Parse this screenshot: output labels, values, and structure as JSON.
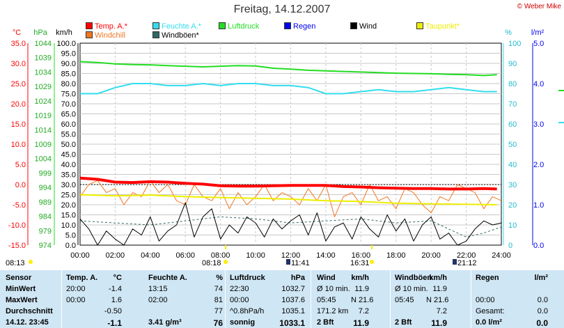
{
  "page": {
    "title": "Freitag, 14.12.2007",
    "copyright": "© Weber Mike"
  },
  "legend": [
    {
      "label": "Temp. A.*",
      "color": "#ff0000"
    },
    {
      "label": "Feuchte A.*",
      "color": "#33ddee"
    },
    {
      "label": "Luftdruck",
      "color": "#22dd22"
    },
    {
      "label": "Regen",
      "color": "#0000ee"
    },
    {
      "label": "Wind",
      "color": "#000000"
    },
    {
      "label": "Taupunkt*",
      "color": "#eeee00"
    },
    {
      "label": "Windchill",
      "color": "#ee7722"
    },
    {
      "label": "Windböen*",
      "color": "#336666"
    }
  ],
  "axes": {
    "temp_unit": "°C",
    "temp_ticks": [
      "35.0",
      "30.0",
      "25.0",
      "20.0",
      "15.0",
      "10.0",
      "5.0",
      "0.0",
      "-5.0",
      "-10.0",
      "-15.0"
    ],
    "hpa_unit": "hPa",
    "hpa_ticks": [
      "1044",
      "1039",
      "1034",
      "1029",
      "1024",
      "1019",
      "1014",
      "1009",
      "1004",
      "999",
      "994",
      "989",
      "984",
      "979",
      "974"
    ],
    "kmh_unit": "km/h",
    "kmh_ticks": [
      "100.0",
      "95.0",
      "90.0",
      "85.0",
      "80.0",
      "75.0",
      "70.0",
      "65.0",
      "60.0",
      "55.0",
      "50.0",
      "45.0",
      "40.0",
      "35.0",
      "30.0",
      "25.0",
      "20.0",
      "15.0",
      "10.0",
      "5.0",
      "0.0"
    ],
    "pct_unit": "%",
    "pct_ticks": [
      "100",
      "90",
      "80",
      "70",
      "60",
      "50",
      "40",
      "30",
      "20",
      "10",
      "0"
    ],
    "rain_unit": "l/m²",
    "rain_ticks": [
      "5.0",
      "4.0",
      "3.0",
      "2.0",
      "1.0",
      "0.0"
    ],
    "x_ticks": [
      "00:00",
      "02:00",
      "04:00",
      "06:00",
      "08:00",
      "10:00",
      "12:00",
      "14:00",
      "16:00",
      "18:00",
      "20:00",
      "22:00",
      "24:00"
    ]
  },
  "sun_times": [
    "08:13",
    "08:18",
    "11:41",
    "16:31",
    "21:12"
  ],
  "chart_data": {
    "type": "line",
    "x_unit": "hours",
    "x_range": [
      0,
      24
    ],
    "x_ticks": [
      "00:00",
      "02:00",
      "04:00",
      "06:00",
      "08:00",
      "10:00",
      "12:00",
      "14:00",
      "16:00",
      "18:00",
      "20:00",
      "22:00",
      "24:00"
    ],
    "ylim_kmh": [
      0,
      100
    ],
    "ylim_temp": [
      -15,
      35
    ],
    "ylim_hpa": [
      974,
      1044
    ],
    "ylim_pct": [
      0,
      100
    ],
    "ylim_rain": [
      0,
      5
    ],
    "grid": true,
    "series": [
      {
        "name": "Temp. A.*",
        "axis": "temp",
        "color": "#ff0000",
        "x": [
          0,
          1,
          2,
          3,
          4,
          5,
          6,
          7,
          8,
          9,
          10,
          11,
          12,
          13,
          14,
          15,
          16,
          17,
          18,
          19,
          20,
          21,
          22,
          23,
          23.75
        ],
        "values": [
          1.6,
          1.3,
          0.6,
          0.5,
          0.7,
          0.6,
          0.3,
          0.1,
          -0.3,
          -0.4,
          -0.4,
          -0.3,
          -0.2,
          -0.2,
          -0.2,
          -0.5,
          -0.6,
          -0.8,
          -0.9,
          -1.0,
          -1.0,
          -1.1,
          -1.1,
          -1.0,
          -1.1
        ]
      },
      {
        "name": "Feuchte A.*",
        "axis": "pct",
        "color": "#33ddee",
        "x": [
          0,
          1,
          2,
          3,
          4,
          5,
          6,
          7,
          8,
          9,
          10,
          11,
          12,
          13,
          14,
          15,
          16,
          17,
          18,
          19,
          20,
          21,
          22,
          23,
          23.75
        ],
        "values": [
          75,
          75,
          78,
          80,
          80,
          79,
          79,
          80,
          79,
          80,
          80,
          79,
          79,
          78,
          75,
          75,
          76,
          77,
          76,
          76,
          77,
          78,
          77,
          76,
          76
        ]
      },
      {
        "name": "Luftdruck",
        "axis": "hpa",
        "color": "#22dd22",
        "x": [
          0,
          1,
          2,
          3,
          4,
          5,
          6,
          7,
          8,
          9,
          10,
          11,
          12,
          13,
          14,
          15,
          16,
          17,
          18,
          19,
          20,
          21,
          22,
          23,
          23.75
        ],
        "values": [
          1037.6,
          1037.3,
          1036.8,
          1036.6,
          1036.5,
          1036.2,
          1036.0,
          1035.8,
          1036.0,
          1036.2,
          1036.1,
          1035.3,
          1035.0,
          1034.6,
          1034.4,
          1034.2,
          1034.0,
          1033.8,
          1033.6,
          1033.5,
          1033.4,
          1033.2,
          1033.1,
          1032.8,
          1033.1
        ]
      },
      {
        "name": "Wind",
        "axis": "kmh",
        "color": "#000000",
        "x": [
          0,
          0.5,
          1,
          1.5,
          2,
          2.5,
          3,
          3.5,
          4,
          4.5,
          5,
          5.5,
          6,
          6.5,
          7,
          7.5,
          8,
          8.5,
          9,
          9.5,
          10,
          10.5,
          11,
          11.5,
          12,
          12.5,
          13,
          13.5,
          14,
          14.5,
          15,
          15.5,
          16,
          16.5,
          17,
          17.5,
          18,
          18.5,
          19,
          19.5,
          20,
          20.5,
          21,
          21.5,
          22,
          22.5,
          23,
          23.5,
          24
        ],
        "values": [
          13,
          8,
          0,
          7,
          3,
          0,
          8,
          5,
          14,
          2,
          7,
          10,
          21,
          4,
          14,
          18,
          3,
          10,
          6,
          14,
          11,
          4,
          13,
          8,
          12,
          15,
          5,
          16,
          2,
          9,
          11,
          3,
          14,
          8,
          4,
          15,
          7,
          13,
          2,
          10,
          14,
          3,
          6,
          0,
          2,
          8,
          12,
          10,
          11
        ]
      },
      {
        "name": "Taupunkt*",
        "axis": "temp",
        "color": "#eeee00",
        "x": [
          0,
          2,
          4,
          6,
          8,
          10,
          12,
          14,
          16,
          18,
          20,
          22,
          23.75
        ],
        "values": [
          -2.5,
          -2.8,
          -2.6,
          -3.0,
          -3.2,
          -3.4,
          -3.6,
          -4.0,
          -4.2,
          -4.6,
          -4.8,
          -4.9,
          -5.0
        ]
      },
      {
        "name": "Windchill",
        "axis": "temp",
        "color": "#ee7722",
        "x": [
          0,
          0.5,
          1,
          1.5,
          2,
          2.5,
          3,
          3.5,
          4,
          4.5,
          5,
          5.5,
          6,
          6.5,
          7,
          7.5,
          8,
          8.5,
          9,
          9.5,
          10,
          10.5,
          11,
          11.5,
          12,
          12.5,
          13,
          13.5,
          14,
          14.5,
          15,
          15.5,
          16,
          16.5,
          17,
          17.5,
          18,
          18.5,
          19,
          19.5,
          20,
          20.5,
          21,
          21.5,
          22,
          22.5,
          23,
          23.5,
          24
        ],
        "values": [
          -3,
          0,
          1,
          -2,
          -1,
          -5,
          -2,
          -3,
          1,
          -2,
          0,
          -4,
          -5,
          0,
          -3,
          -4,
          -1,
          -6,
          -2,
          -5,
          -3,
          0,
          -4,
          -2,
          -3,
          -5,
          -1,
          -4,
          0,
          -8,
          -3,
          -2,
          -5,
          0,
          -4,
          -3,
          -6,
          -1,
          -2,
          -5,
          -7,
          -3,
          -4,
          0,
          -1,
          -2,
          -6,
          -3,
          -4
        ]
      },
      {
        "name": "Windböen*",
        "axis": "kmh",
        "color": "#336666",
        "x": [
          0,
          2,
          4,
          6,
          8,
          10,
          12,
          14,
          16,
          18,
          20,
          22,
          23,
          24
        ],
        "values": [
          12,
          11,
          10,
          12,
          14,
          13,
          11,
          12,
          13,
          11,
          12,
          4,
          6,
          9
        ]
      }
    ]
  },
  "table": {
    "rows": [
      [
        "Sensor",
        "Temp. A.",
        "°C",
        "Feuchte A.",
        "%",
        "Luftdruck",
        "hPa",
        "Wind",
        "km/h",
        "Windböen",
        "km/h",
        "Regen",
        "l/m²"
      ],
      [
        "MinWert",
        "20:00",
        "-1.4",
        "13:15",
        "74",
        "22:30",
        "1032.7",
        "Ø 10 min.",
        "11.9",
        "Ø 10 min.",
        "11.9",
        "",
        ""
      ],
      [
        "MaxWert",
        "00:00",
        "1.6",
        "02:00",
        "81",
        "00:00",
        "1037.6",
        "05:45",
        "N 21.6",
        "05:45",
        "N 21.6",
        "00:00",
        "0.0"
      ],
      [
        "Durchschnitt",
        "",
        "-0.50",
        "",
        "77",
        "^0.8hPa/h",
        "1035.1",
        "171.2 km",
        "7.2",
        "",
        "7.2",
        "Gesamt:",
        "0.0"
      ],
      [
        "14.12. 23:45",
        "",
        "-1.1",
        "3.41 g/m³",
        "76",
        "sonnig",
        "1033.1",
        "2 Bft",
        "11.9",
        "2 Bft",
        "11.9",
        "0.0 l/m²",
        "0.0"
      ]
    ]
  }
}
